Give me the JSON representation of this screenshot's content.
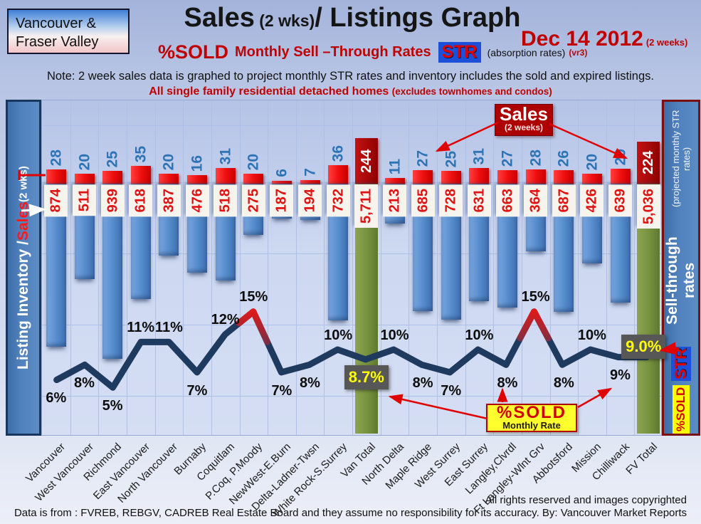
{
  "header": {
    "region_line1": "Vancouver &",
    "region_line2": "Fraser Valley",
    "title_sales": "Sales",
    "title_wks": " (2 wks)",
    "title_rest": "/ Listings Graph",
    "date": "Dec 14 2012",
    "date_note": "(2 weeks)",
    "pct_sold": "%SOLD",
    "rates": "Monthly Sell –Through Rates",
    "str": "STR",
    "absorption": "(absorption rates)",
    "version": "(vr3)",
    "note": "Note: 2 week sales data is graphed to project monthly STR rates and inventory includes the sold and expired listings.",
    "scope": "All single family residential detached homes",
    "scope_paren": "(excludes townhomes and condos)"
  },
  "left_axis": {
    "part1": "Listing Inventory / ",
    "part2": "Sales",
    "part3": " (2  wks)"
  },
  "right_axis": {
    "title": "Sell-through rates",
    "subtitle": "(projected monthly STR rates)",
    "str_chip": "STR",
    "sold_chip": "%SOLD"
  },
  "callouts": {
    "sales": {
      "title": "Sales",
      "sub": "(2 weeks)"
    },
    "sold": {
      "title": "%SOLD",
      "sub": "Monthly Rate"
    }
  },
  "footer": {
    "rights": "All rights reserved and  images copyrighted",
    "source": "Data is from : FVREB, REBGV, CADREB Real Estate Board and they assume no responsibility for its accuracy. By: Vancouver Market Reports"
  },
  "chart_data": {
    "type": "bar+line combo (inverted hanging bars: sales caps stacked on inventory bars, with sell-through rate line)",
    "categories": [
      "Vancouver",
      "West Vancouver",
      "Richmond",
      "East Vancouver",
      "North Vancouver",
      "Burnaby",
      "Coquitlam",
      "P.Coq, P.Moody",
      "NewWest-E.Burn",
      "Delta-Ladner-Twsn",
      "White Rock-S.Surrey",
      "Van Total",
      "North Delta",
      "Maple Ridge",
      "West Surrey",
      "East Surrey",
      "Langley,Clvrdl",
      "Ft Langley-Wlnt Grv",
      "Abbotsford",
      "Mission",
      "Chilliwack",
      "FV Total"
    ],
    "series": [
      {
        "name": "Sales (2 weeks)",
        "values": [
          28,
          20,
          25,
          35,
          20,
          16,
          31,
          20,
          6,
          7,
          36,
          244,
          11,
          27,
          25,
          31,
          27,
          28,
          26,
          20,
          29,
          224
        ]
      },
      {
        "name": "Listing Inventory",
        "values": [
          874,
          511,
          939,
          618,
          387,
          476,
          518,
          275,
          187,
          194,
          732,
          5711,
          213,
          685,
          728,
          631,
          663,
          364,
          687,
          426,
          639,
          5036
        ]
      },
      {
        "name": "%SOLD monthly sell-through rate",
        "values": [
          6,
          8,
          5,
          11,
          11,
          7,
          12,
          15,
          7,
          8,
          10,
          8.7,
          10,
          8,
          7,
          10,
          8,
          15,
          8,
          10,
          9,
          9.0
        ]
      }
    ],
    "inventory_labels": [
      "874",
      "511",
      "939",
      "618",
      "387",
      "476",
      "518",
      "275",
      "187",
      "194",
      "732",
      "5,711",
      "213",
      "685",
      "728",
      "631",
      "663",
      "364",
      "687",
      "426",
      "639",
      "5,036"
    ],
    "pct_labels": [
      "6%",
      "8%",
      "5%",
      "11%",
      "11%",
      "7%",
      "12%",
      "15%",
      "7%",
      "8%",
      "10%",
      "8.7%",
      "10%",
      "8%",
      "7%",
      "10%",
      "8%",
      "15%",
      "8%",
      "10%",
      "9%",
      "9.0%"
    ],
    "totals_index": [
      11,
      21
    ],
    "peaks_index": [
      7,
      17
    ],
    "legend_position": "none",
    "grid": true,
    "colors": {
      "sales_bar": "#ee1111",
      "total_sales_cap": "#a50d0d",
      "inventory_bar": "#4f81bd",
      "total_inventory_bar": "#76923c",
      "line": "#1f3a5f",
      "line_peak": "#d42020",
      "sales_number": "#2e74b5",
      "inventory_number": "#e01212",
      "total_rate_bg": "#575757",
      "total_rate_text": "#ffff00"
    }
  }
}
